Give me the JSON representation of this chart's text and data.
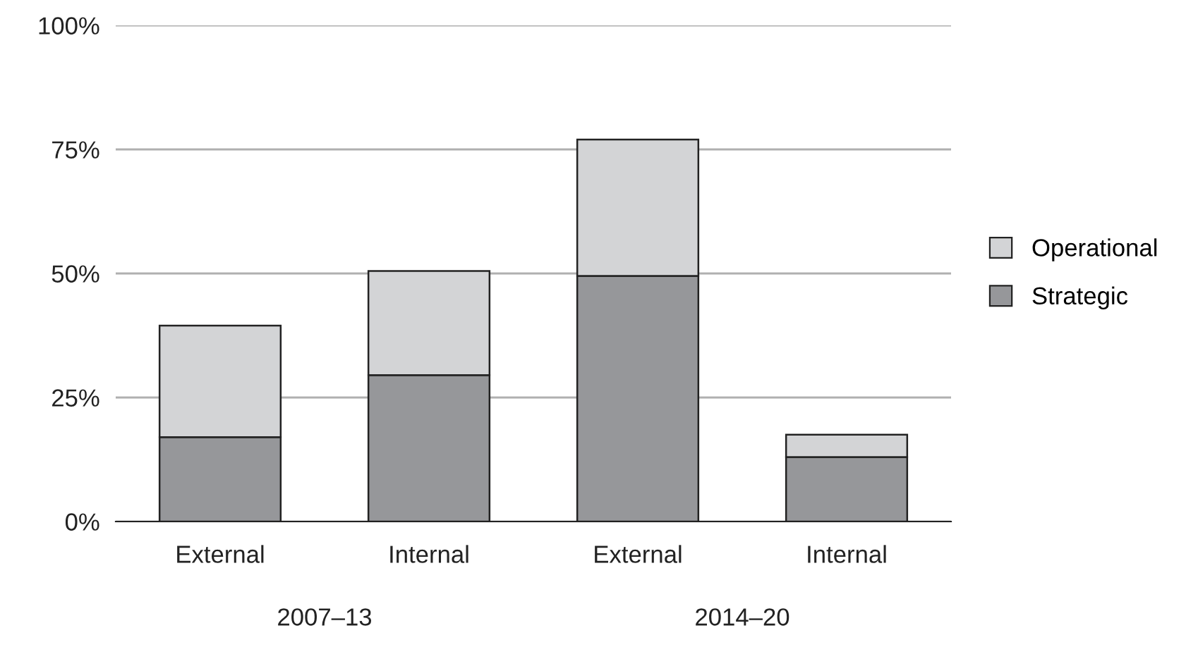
{
  "chart_data": {
    "type": "bar",
    "stacked": true,
    "categories": [
      "External",
      "Internal",
      "External",
      "Internal"
    ],
    "series": [
      {
        "name": "Strategic",
        "color": "#96979a",
        "values": [
          17,
          29.5,
          49.5,
          13
        ]
      },
      {
        "name": "Operational",
        "color": "#d3d4d6",
        "values": [
          22.5,
          21,
          27.5,
          4.5
        ]
      }
    ],
    "ylim": [
      0,
      100
    ],
    "yticks": [
      {
        "value": 0,
        "label": "0%"
      },
      {
        "value": 25,
        "label": "25%"
      },
      {
        "value": 50,
        "label": "50%"
      },
      {
        "value": 75,
        "label": "75%"
      },
      {
        "value": 100,
        "label": "100%"
      }
    ],
    "grid": "y",
    "legend": "right",
    "annotations": [
      "2007–13",
      "2014–20"
    ]
  }
}
